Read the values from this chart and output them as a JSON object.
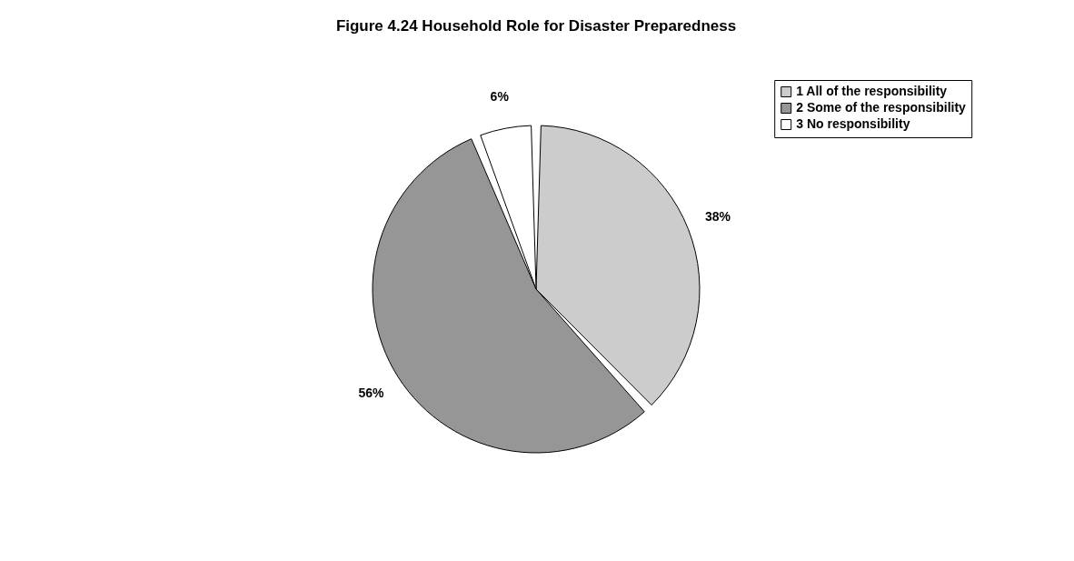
{
  "chart_data": {
    "type": "pie",
    "title": "Figure 4.24  Household Role for Disaster Preparedness",
    "categories": [
      "1 All of the responsibility",
      "2 Some of the responsibility",
      "3 No responsibility"
    ],
    "values": [
      38,
      56,
      6
    ],
    "colors": [
      "#cccccc",
      "#969696",
      "#ffffff"
    ],
    "value_labels": [
      "38%",
      "56%",
      "6%"
    ],
    "legend": "top right"
  }
}
